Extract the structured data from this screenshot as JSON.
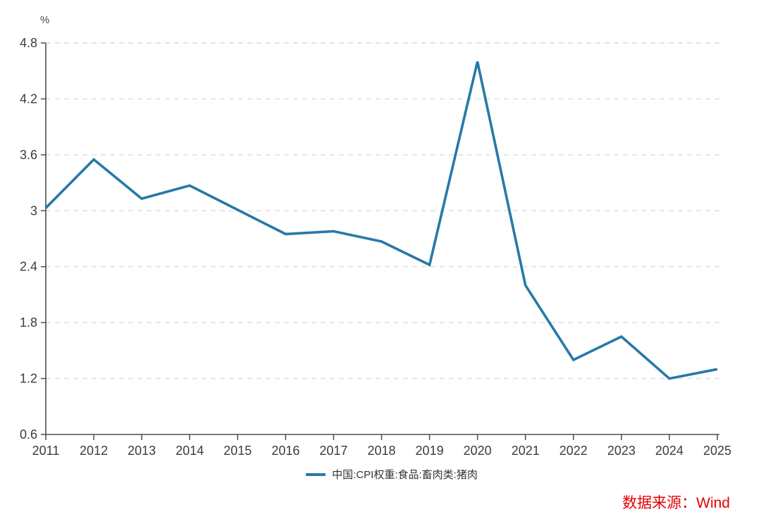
{
  "chart": {
    "unit": "%",
    "legend_label": "中国:CPI权重:食品:畜肉类:猪肉",
    "source": "数据来源：Wind"
  },
  "chart_data": {
    "type": "line",
    "title": "",
    "xlabel": "",
    "ylabel": "%",
    "categories": [
      "2011",
      "2012",
      "2013",
      "2014",
      "2015",
      "2016",
      "2017",
      "2018",
      "2019",
      "2020",
      "2021",
      "2022",
      "2023",
      "2024",
      "2025"
    ],
    "series": [
      {
        "name": "中国:CPI权重:食品:畜肉类:猪肉",
        "color": "#2878a8",
        "values": [
          3.03,
          3.55,
          3.13,
          3.27,
          3.01,
          2.75,
          2.78,
          2.67,
          2.42,
          4.6,
          2.2,
          1.4,
          1.65,
          1.2,
          1.3
        ]
      }
    ],
    "ylim": [
      0.6,
      4.8
    ],
    "ytick_step": 0.6,
    "ytick_labels": [
      "0.6",
      "1.2",
      "1.8",
      "2.4",
      "3",
      "3.6",
      "4.2",
      "4.8"
    ],
    "grid": "horizontal-dashed",
    "legend_position": "bottom-center",
    "colors": {
      "line": "#2878a8",
      "grid": "#dcdcdc",
      "axis": "#4d4d4d",
      "tick_text": "#3c3c3c",
      "source_text": "#e60000"
    }
  }
}
